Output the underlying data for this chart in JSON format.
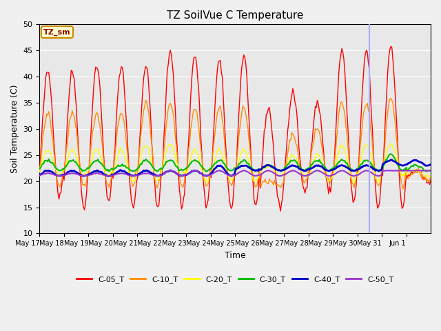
{
  "title": "TZ SoilVue C Temperature",
  "xlabel": "Time",
  "ylabel": "Soil Temperature (C)",
  "ylim": [
    10,
    50
  ],
  "yticks": [
    10,
    15,
    20,
    25,
    30,
    35,
    40,
    45,
    50
  ],
  "plot_bg_color": "#e8e8e8",
  "fig_bg_color": "#f0f0f0",
  "series_colors": {
    "C-05_T": "#ff0000",
    "C-10_T": "#ff8c00",
    "C-20_T": "#ffff00",
    "C-30_T": "#00bb00",
    "C-40_T": "#0000cc",
    "C-50_T": "#9933cc"
  },
  "line_widths": {
    "C-05_T": 1.0,
    "C-10_T": 1.0,
    "C-20_T": 1.0,
    "C-30_T": 1.5,
    "C-40_T": 2.0,
    "C-50_T": 1.5
  },
  "x_tick_labels": [
    "May 17",
    "May 18",
    "May 19",
    "May 20",
    "May 21",
    "May 22",
    "May 23",
    "May 24",
    "May 25",
    "May 26",
    "May 27",
    "May 28",
    "May 29",
    "May 30",
    "May 31",
    "Jun 1"
  ],
  "annotation_label": "TZ_sm",
  "vline_x": 13.5,
  "vline_color": "#aaaaff",
  "n_days": 16,
  "points_per_day": 24,
  "day_min_max": {
    "C-05_T": {
      "mins": [
        17,
        15,
        16,
        15,
        15,
        15,
        15,
        15,
        15,
        15,
        18,
        18,
        16,
        15,
        15,
        20
      ],
      "maxs": [
        41,
        41,
        42,
        42,
        42,
        45,
        44,
        43,
        44,
        34,
        37,
        35,
        45,
        45,
        46,
        22
      ]
    },
    "C-10_T": {
      "mins": [
        19,
        19,
        19,
        19,
        19,
        19,
        19,
        19,
        19,
        19,
        20,
        20,
        19,
        19,
        19,
        20
      ],
      "maxs": [
        33,
        33,
        33,
        33,
        35,
        35,
        34,
        34,
        34,
        20,
        29,
        30,
        35,
        35,
        36,
        22
      ]
    },
    "C-20_T": {
      "mins": [
        21,
        21,
        21,
        20,
        20,
        21,
        20,
        20,
        20,
        21,
        21,
        20,
        20,
        20,
        21,
        21
      ],
      "maxs": [
        26,
        26,
        26,
        26,
        27,
        27,
        26,
        26,
        26,
        23,
        25,
        25,
        27,
        27,
        27,
        22
      ]
    },
    "C-30_T": {
      "mins": [
        22,
        22,
        22,
        22,
        22,
        22,
        22,
        22,
        22,
        22,
        22,
        22,
        22,
        22,
        22,
        22
      ],
      "maxs": [
        24,
        24,
        24,
        23,
        24,
        24,
        24,
        24,
        24,
        23,
        24,
        24,
        24,
        24,
        25,
        23
      ]
    },
    "C-40_T": {
      "mins": [
        21,
        21,
        21,
        21,
        21,
        21,
        21,
        21,
        22,
        22,
        22,
        22,
        22,
        22,
        23,
        23
      ],
      "maxs": [
        22,
        22,
        22,
        22,
        22,
        22,
        22,
        23,
        23,
        23,
        23,
        23,
        23,
        23,
        24,
        24
      ]
    },
    "C-50_T": {
      "mins": [
        21,
        21,
        21,
        21,
        21,
        21,
        21,
        21,
        21,
        21,
        21,
        21,
        21,
        21,
        22,
        22
      ],
      "maxs": [
        21.5,
        21.5,
        21.5,
        21.5,
        21.5,
        22,
        22,
        22,
        22,
        22,
        22,
        22,
        22,
        22,
        22,
        22
      ]
    }
  }
}
